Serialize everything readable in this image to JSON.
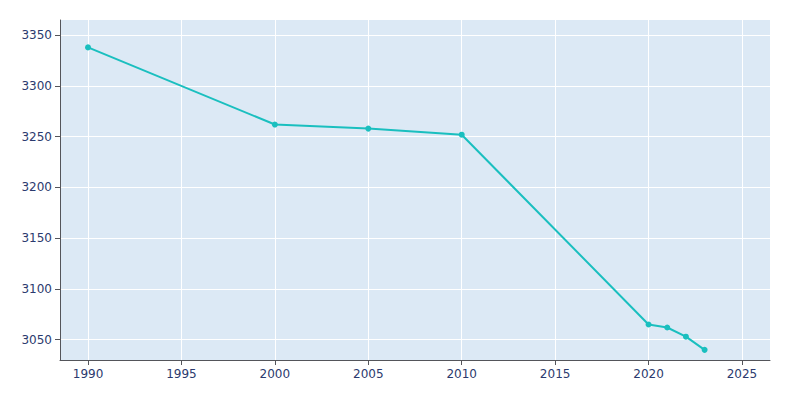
{
  "chart_data": {
    "type": "line",
    "x": [
      1990,
      2000,
      2005,
      2010,
      2020,
      2021,
      2022,
      2023
    ],
    "values": [
      3338,
      3262,
      3258,
      3252,
      3065,
      3062,
      3053,
      3040
    ],
    "color": "#1abfbf",
    "marker": "circle",
    "xlim": [
      1988.5,
      2026.5
    ],
    "ylim": [
      3030,
      3365
    ],
    "xticks": [
      1990,
      1995,
      2000,
      2005,
      2010,
      2015,
      2020,
      2025
    ],
    "yticks": [
      3050,
      3100,
      3150,
      3200,
      3250,
      3300,
      3350
    ],
    "grid": true
  }
}
